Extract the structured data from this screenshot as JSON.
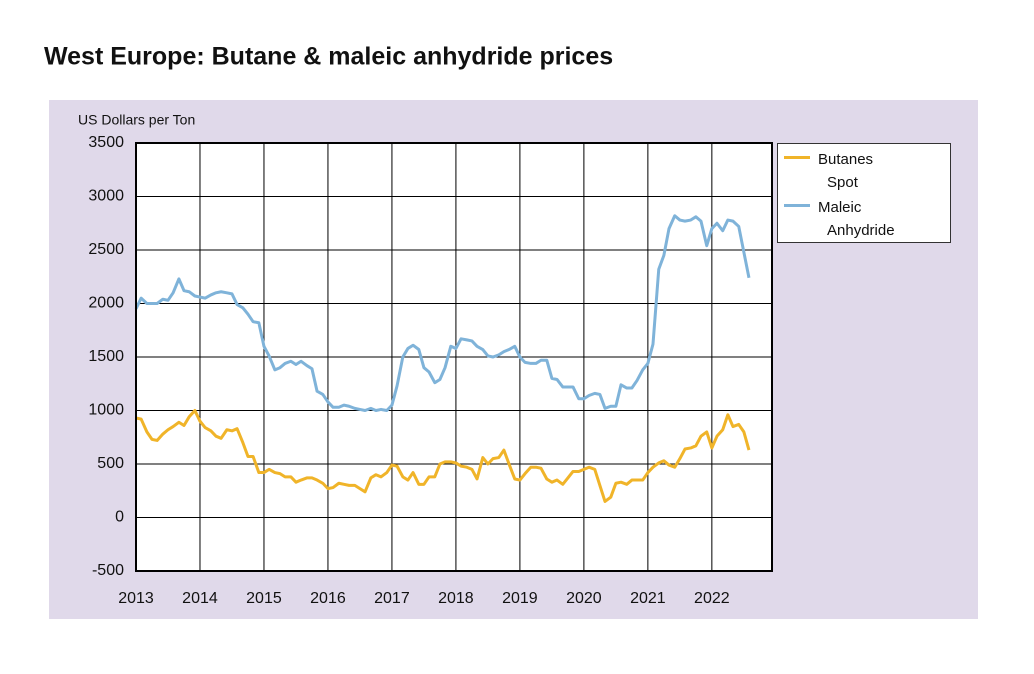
{
  "chart_data": {
    "type": "line",
    "title": "West Europe: Butane & maleic anhydride prices",
    "y_label": "US Dollars per Ton",
    "x": [
      2013,
      2013.08,
      2013.17,
      2013.25,
      2013.33,
      2013.42,
      2013.5,
      2013.58,
      2013.67,
      2013.75,
      2013.83,
      2013.92,
      2014,
      2014.08,
      2014.17,
      2014.25,
      2014.33,
      2014.42,
      2014.5,
      2014.58,
      2014.67,
      2014.75,
      2014.83,
      2014.92,
      2015,
      2015.08,
      2015.17,
      2015.25,
      2015.33,
      2015.42,
      2015.5,
      2015.58,
      2015.67,
      2015.75,
      2015.83,
      2015.92,
      2016,
      2016.08,
      2016.17,
      2016.25,
      2016.33,
      2016.42,
      2016.5,
      2016.58,
      2016.67,
      2016.75,
      2016.83,
      2016.92,
      2017,
      2017.08,
      2017.17,
      2017.25,
      2017.33,
      2017.42,
      2017.5,
      2017.58,
      2017.67,
      2017.75,
      2017.83,
      2017.92,
      2018,
      2018.08,
      2018.17,
      2018.25,
      2018.33,
      2018.42,
      2018.5,
      2018.58,
      2018.67,
      2018.75,
      2018.83,
      2018.92,
      2019,
      2019.08,
      2019.17,
      2019.25,
      2019.33,
      2019.42,
      2019.5,
      2019.58,
      2019.67,
      2019.75,
      2019.83,
      2019.92,
      2020,
      2020.08,
      2020.17,
      2020.25,
      2020.33,
      2020.42,
      2020.5,
      2020.58,
      2020.67,
      2020.75,
      2020.83,
      2020.92,
      2021,
      2021.08,
      2021.17,
      2021.25,
      2021.33,
      2021.42,
      2021.5,
      2021.58,
      2021.67,
      2021.75,
      2021.83,
      2021.92,
      2022,
      2022.08,
      2022.17,
      2022.25,
      2022.33,
      2022.42,
      2022.5,
      2022.58
    ],
    "series": [
      {
        "name": "Butanes Spot",
        "color": "#f0b429",
        "values": [
          930,
          920,
          800,
          730,
          720,
          780,
          820,
          850,
          890,
          860,
          940,
          1000,
          900,
          840,
          810,
          760,
          740,
          820,
          810,
          830,
          700,
          570,
          570,
          420,
          420,
          450,
          420,
          410,
          380,
          380,
          330,
          350,
          370,
          370,
          350,
          320,
          270,
          280,
          320,
          310,
          300,
          300,
          270,
          240,
          370,
          400,
          380,
          420,
          490,
          480,
          380,
          350,
          420,
          310,
          310,
          380,
          380,
          500,
          520,
          520,
          510,
          480,
          470,
          450,
          360,
          560,
          500,
          550,
          560,
          630,
          500,
          360,
          350,
          410,
          470,
          470,
          460,
          360,
          330,
          350,
          310,
          370,
          430,
          430,
          450,
          470,
          450,
          300,
          150,
          190,
          320,
          330,
          310,
          350,
          350,
          350,
          420,
          470,
          510,
          530,
          490,
          470,
          550,
          640,
          650,
          670,
          760,
          800,
          650,
          760,
          820,
          960,
          850,
          870,
          800,
          630
        ]
      },
      {
        "name": "Maleic Anhydride",
        "color": "#7fb3d9",
        "values": [
          1950,
          2050,
          2000,
          2000,
          2000,
          2040,
          2030,
          2100,
          2230,
          2120,
          2110,
          2070,
          2060,
          2050,
          2080,
          2100,
          2110,
          2100,
          2090,
          1990,
          1960,
          1900,
          1830,
          1820,
          1600,
          1510,
          1380,
          1400,
          1440,
          1460,
          1430,
          1460,
          1420,
          1390,
          1180,
          1150,
          1080,
          1030,
          1030,
          1050,
          1040,
          1020,
          1010,
          1000,
          1020,
          1000,
          1010,
          1000,
          1050,
          1230,
          1500,
          1580,
          1610,
          1570,
          1400,
          1360,
          1260,
          1290,
          1400,
          1600,
          1580,
          1670,
          1660,
          1650,
          1600,
          1570,
          1510,
          1500,
          1520,
          1550,
          1570,
          1600,
          1500,
          1450,
          1440,
          1440,
          1470,
          1470,
          1300,
          1290,
          1220,
          1220,
          1220,
          1110,
          1110,
          1140,
          1160,
          1150,
          1020,
          1040,
          1040,
          1240,
          1210,
          1210,
          1280,
          1380,
          1440,
          1620,
          2320,
          2450,
          2700,
          2820,
          2780,
          2770,
          2780,
          2810,
          2770,
          2540,
          2700,
          2750,
          2680,
          2780,
          2770,
          2720,
          2480,
          2240
        ]
      }
    ],
    "xlim": [
      2013,
      2022.94
    ],
    "xticks": [
      2013,
      2014,
      2015,
      2016,
      2017,
      2018,
      2019,
      2020,
      2021,
      2022
    ],
    "ylim": [
      -500,
      3500
    ],
    "yticks": [
      -500,
      0,
      500,
      1000,
      1500,
      2000,
      2500,
      3000,
      3500
    ],
    "grid": true,
    "legend": "upper right outside"
  }
}
